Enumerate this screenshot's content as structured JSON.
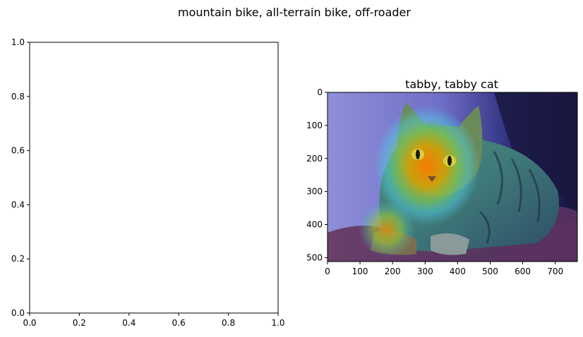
{
  "figure": {
    "suptitle": "mountain bike, all-terrain bike, off-roader"
  },
  "chart_data": [
    {
      "type": "scatter",
      "title": "",
      "xlabel": "",
      "ylabel": "",
      "xlim": [
        0,
        1
      ],
      "ylim": [
        0,
        1
      ],
      "x_ticks": [
        "0.0",
        "0.2",
        "0.4",
        "0.6",
        "0.8",
        "1.0"
      ],
      "y_ticks": [
        "0.0",
        "0.2",
        "0.4",
        "0.6",
        "0.8",
        "1.0"
      ],
      "series": [],
      "grid": false
    },
    {
      "type": "heatmap",
      "title": "tabby, tabby cat",
      "xlabel": "",
      "ylabel": "",
      "xlim": [
        0,
        768
      ],
      "ylim": [
        512,
        0
      ],
      "x_ticks": [
        "0",
        "100",
        "200",
        "300",
        "400",
        "500",
        "600",
        "700"
      ],
      "y_ticks": [
        "0",
        "100",
        "200",
        "300",
        "400",
        "500"
      ],
      "overlay": "jet colormap heatmap over photograph of tabby cat",
      "grid": false
    }
  ]
}
